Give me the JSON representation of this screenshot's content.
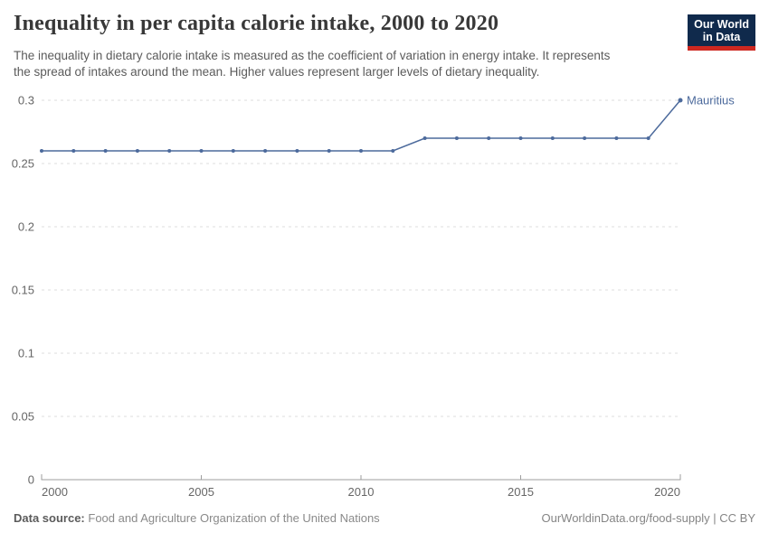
{
  "header": {
    "title": "Inequality in per capita calorie intake, 2000 to 2020",
    "subtitle_line1": "The inequality in dietary calorie intake is measured as the coefficient of variation in energy intake. It represents",
    "subtitle_line2": "the spread of intakes around the mean. Higher values represent larger levels of dietary inequality.",
    "logo": {
      "line1": "Our World",
      "line2": "in Data",
      "bg_color": "#102a4c",
      "bar_color": "#ce2820"
    }
  },
  "footer": {
    "source_label": "Data source:",
    "source_value": "Food and Agriculture Organization of the United Nations",
    "link": "OurWorldinData.org/food-supply | CC BY"
  },
  "chart_data": {
    "type": "line",
    "title": "Inequality in per capita calorie intake, 2000 to 2020",
    "xlabel": "",
    "ylabel": "",
    "xlim": [
      2000,
      2020
    ],
    "ylim": [
      0,
      0.3
    ],
    "xticks": [
      2000,
      2005,
      2010,
      2015,
      2020
    ],
    "yticks": [
      0,
      0.05,
      0.1,
      0.15,
      0.2,
      0.25,
      0.3
    ],
    "grid": "horizontal-dashed",
    "legend_position": "end-of-line-label",
    "grid_color": "#dcdcdc",
    "axis_color": "#9e9e9e",
    "tick_color": "#666666",
    "series": [
      {
        "name": "Mauritius",
        "color": "#4c6a9c",
        "x": [
          2000,
          2001,
          2002,
          2003,
          2004,
          2005,
          2006,
          2007,
          2008,
          2009,
          2010,
          2011,
          2012,
          2013,
          2014,
          2015,
          2016,
          2017,
          2018,
          2019,
          2020
        ],
        "values": [
          0.26,
          0.26,
          0.26,
          0.26,
          0.26,
          0.26,
          0.26,
          0.26,
          0.26,
          0.26,
          0.26,
          0.26,
          0.27,
          0.27,
          0.27,
          0.27,
          0.27,
          0.27,
          0.27,
          0.27,
          0.3
        ]
      }
    ]
  }
}
